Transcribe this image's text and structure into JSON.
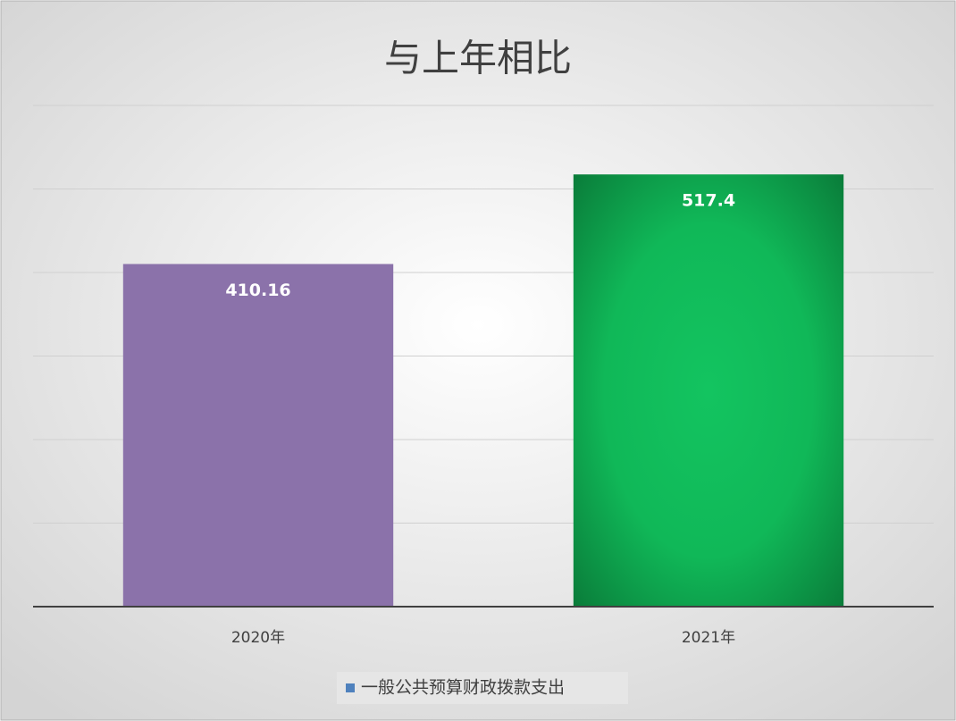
{
  "chart_data": {
    "type": "bar",
    "title": "与上年相比",
    "categories": [
      "2020年",
      "2021年"
    ],
    "series": [
      {
        "name": "一般公共预算财政拨款支出",
        "color": "#4f81bd",
        "values": [
          410.16,
          517.4
        ],
        "point_colors": [
          "#8b72aa",
          "#13c460"
        ]
      }
    ],
    "ylim": [
      0,
      600
    ],
    "yticks": [
      0,
      100,
      200,
      300,
      400,
      500,
      600
    ],
    "grid": true,
    "legend": "bottom"
  }
}
